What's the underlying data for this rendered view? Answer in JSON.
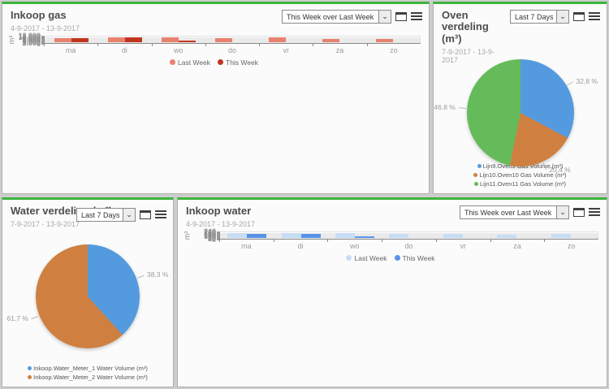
{
  "theme": {
    "panel_accent": "#3cb43c",
    "background": "#cdcdcd"
  },
  "icons": {
    "select_arrow": "⌄"
  },
  "panels": {
    "inkoop_gas": {
      "title": "Inkoop gas",
      "date_range": "4-9-2017 - 13-9-2017",
      "period_select": "This Week over Last Week"
    },
    "oven_verdeling": {
      "title": "Oven verdeling (m³)",
      "date_range": "7-9-2017 - 13-9-2017",
      "period_select": "Last 7 Days"
    },
    "water_verdeling": {
      "title": "Water verdeling (m³)",
      "date_range": "7-9-2017 - 13-9-2017",
      "period_select": "Last 7 Days"
    },
    "inkoop_water": {
      "title": "Inkoop water",
      "date_range": "4-9-2017 - 13-9-2017",
      "period_select": "This Week over Last Week"
    }
  },
  "chart_data": [
    {
      "type": "bar",
      "title": "Inkoop gas",
      "categories": [
        "ma",
        "di",
        "wo",
        "do",
        "vr",
        "za",
        "zo"
      ],
      "series": [
        {
          "name": "Last Week",
          "color": "#e8826f",
          "values": [
            9200,
            11000,
            11050,
            9950,
            11400,
            7900,
            7250
          ]
        },
        {
          "name": "This Week",
          "color": "#c0351f",
          "values": [
            9750,
            10400,
            4100,
            null,
            null,
            null,
            null
          ]
        }
      ],
      "xlabel": "",
      "ylabel": "m³",
      "ylim": [
        0,
        12000
      ],
      "y_ticks": [
        "12.000",
        "11.000",
        "10.000",
        "9.000",
        "8.000",
        "7.000",
        "6.000",
        "5.000",
        "4.000",
        "3.000",
        "2.000",
        "1.000",
        "0"
      ],
      "grid": true,
      "legend_position": "bottom"
    },
    {
      "type": "pie",
      "title": "Oven verdeling (m³)",
      "slices": [
        {
          "label": "Lijn9.Oven9 Gas Volume (m³)",
          "value_pct": 32.8,
          "display": "32,8 %",
          "color": "#549ade"
        },
        {
          "label": "Lijn10.Oven10 Gas Volume (m³)",
          "value_pct": 20.4,
          "display": "20,4 %",
          "color": "#cf8040"
        },
        {
          "label": "Lijn11.Oven11 Gas Volume (m³)",
          "value_pct": 46.8,
          "display": "46,8 %",
          "color": "#65bb59"
        }
      ],
      "start_angle_deg": 0,
      "direction": "clockwise",
      "legend_position": "bottom"
    },
    {
      "type": "pie",
      "title": "Water verdeling (m³)",
      "slices": [
        {
          "label": "Inkoop.Water_Meter_1 Water Volume (m³)",
          "value_pct": 38.3,
          "display": "38,3 %",
          "color": "#549ade"
        },
        {
          "label": "Inkoop.Water_Meter_2 Water Volume (m³)",
          "value_pct": 61.7,
          "display": "61,7 %",
          "color": "#cf8040"
        }
      ],
      "start_angle_deg": 0,
      "direction": "clockwise",
      "legend_position": "bottom"
    },
    {
      "type": "bar",
      "title": "Inkoop water",
      "categories": [
        "ma",
        "di",
        "wo",
        "do",
        "vr",
        "za",
        "zo"
      ],
      "series": [
        {
          "name": "Last Week",
          "color": "#c7dcf5",
          "values": [
            203,
            229,
            200,
            189,
            197,
            138,
            170
          ]
        },
        {
          "name": "This Week",
          "color": "#5794e7",
          "values": [
            199,
            171,
            63,
            null,
            null,
            null,
            null
          ]
        }
      ],
      "xlabel": "",
      "ylabel": "m³",
      "ylim": [
        0,
        240
      ],
      "y_ticks": [
        "240",
        "220",
        "200",
        "180",
        "160",
        "140",
        "120",
        "100",
        "80",
        "60",
        "40",
        "20",
        "0"
      ],
      "grid": true,
      "legend_position": "bottom"
    }
  ]
}
